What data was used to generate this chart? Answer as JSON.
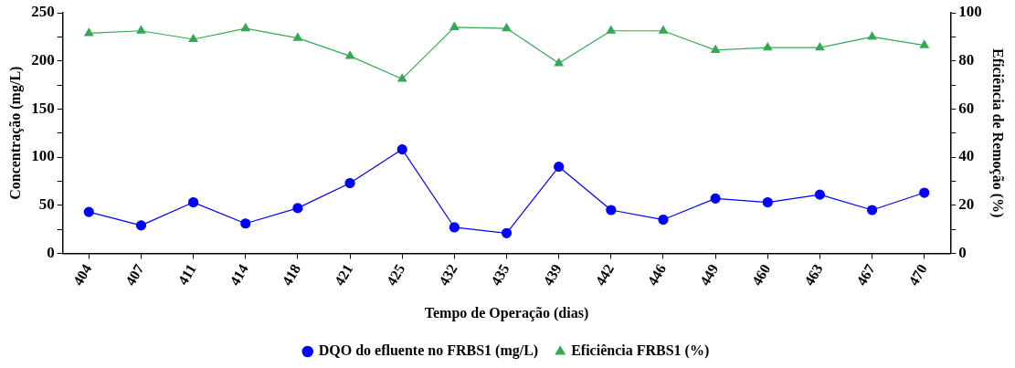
{
  "chart_data": {
    "type": "line",
    "xlabel": "Tempo de Operação (dias)",
    "ylabel": "Concentração (mg/L)",
    "y2label": "Eficiência de Remoção (%)",
    "categories": [
      "404",
      "407",
      "411",
      "414",
      "418",
      "421",
      "425",
      "432",
      "435",
      "439",
      "442",
      "446",
      "449",
      "460",
      "463",
      "467",
      "470"
    ],
    "series": [
      {
        "name": "DQO do efluente no FRBS1 (mg/L)",
        "color": "#0000ff",
        "marker": "circle",
        "values": [
          43,
          29,
          53,
          31,
          47,
          73,
          108,
          27,
          21,
          90,
          45,
          35,
          57,
          53,
          61,
          45,
          63
        ]
      },
      {
        "name": "Eficiência FRBS1 (%)",
        "color": "#35a853",
        "marker": "triangle",
        "axis": "y2",
        "values": [
          91.5,
          92.5,
          89,
          93.5,
          89.5,
          82,
          72.5,
          94,
          93.5,
          79,
          92.5,
          92.5,
          84.5,
          85.5,
          85.5,
          90,
          86.5
        ]
      }
    ],
    "ylim": [
      0,
      250
    ],
    "yticks": [
      0,
      {
        "value": 25,
        "label": null
      },
      50,
      {
        "value": 75,
        "label": null
      },
      100,
      {
        "value": 125,
        "label": null
      },
      150,
      {
        "value": 175,
        "label": null
      },
      200,
      {
        "value": 225,
        "label": null
      },
      250
    ],
    "y2lim": [
      0,
      100
    ],
    "y2ticks": [
      0,
      {
        "value": 10,
        "label": null
      },
      20,
      {
        "value": 30,
        "label": null
      },
      40,
      {
        "value": 50,
        "label": null
      },
      60,
      {
        "value": 70,
        "label": null
      },
      80,
      {
        "value": 90,
        "label": null
      },
      100
    ],
    "grid": false,
    "legend": "bottom",
    "line_style": "solid"
  }
}
